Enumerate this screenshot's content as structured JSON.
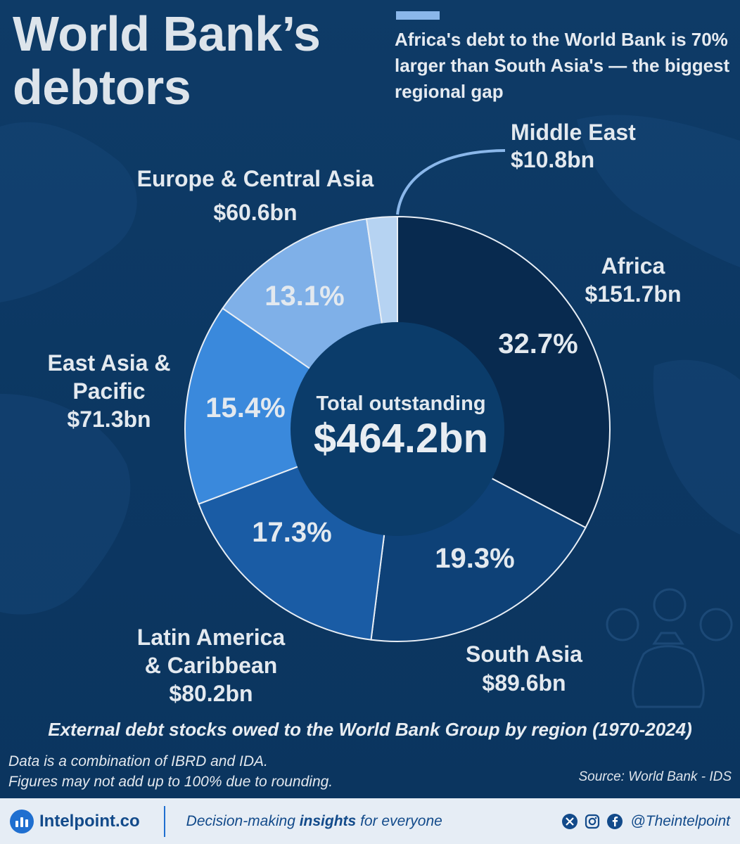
{
  "title": "World Bank’s debtors",
  "headline": "Africa's debt to the World Bank is 70% larger than South Asia's — the biggest regional gap",
  "center_label": "Total outstanding",
  "center_value": "$464.2bn",
  "subtitle": "External debt stocks owed to the World Bank Group by region (1970-2024)",
  "notes": [
    "Data is a combination of IBRD and IDA.",
    "Figures may not add up to 100% due to rounding."
  ],
  "source": "Source: World Bank - IDS",
  "labels": {
    "africa": {
      "name": "Africa",
      "value": "$151.7bn",
      "pct": "32.7%"
    },
    "south_asia": {
      "name": "South Asia",
      "value": "$89.6bn",
      "pct": "19.3%"
    },
    "latam": {
      "name1": "Latin America",
      "name2": "& Caribbean",
      "value": "$80.2bn",
      "pct": "17.3%"
    },
    "east_asia": {
      "name1": "East Asia &",
      "name2": "Pacific",
      "value": "$71.3bn",
      "pct": "15.4%"
    },
    "europe": {
      "name": "Europe & Central Asia",
      "value": "$60.6bn",
      "pct": "13.1%"
    },
    "middle_east": {
      "name": "Middle East",
      "value": "$10.8bn"
    }
  },
  "chart_data": {
    "type": "pie",
    "style": "donut",
    "total": 464.2,
    "unit": "$bn",
    "series": [
      {
        "name": "Africa",
        "value": 151.7,
        "percent": 32.7,
        "color": "#082a4f"
      },
      {
        "name": "South Asia",
        "value": 89.6,
        "percent": 19.3,
        "color": "#0e4177"
      },
      {
        "name": "Latin America & Caribbean",
        "value": 80.2,
        "percent": 17.3,
        "color": "#1a5ca5"
      },
      {
        "name": "East Asia & Pacific",
        "value": 71.3,
        "percent": 15.4,
        "color": "#3a89dc"
      },
      {
        "name": "Europe & Central Asia",
        "value": 60.6,
        "percent": 13.1,
        "color": "#7fb0e8"
      },
      {
        "name": "Middle East",
        "value": 10.8,
        "percent": 2.3,
        "color": "#b6d3f2"
      }
    ]
  },
  "footer": {
    "brand": "Intelpoint.co",
    "tagline_pre": "Decision-making ",
    "tagline_bold": "insights",
    "tagline_post": " for everyone",
    "handle": "@Theintelpoint",
    "social_icons": [
      "x-icon",
      "instagram-icon",
      "facebook-icon"
    ]
  }
}
